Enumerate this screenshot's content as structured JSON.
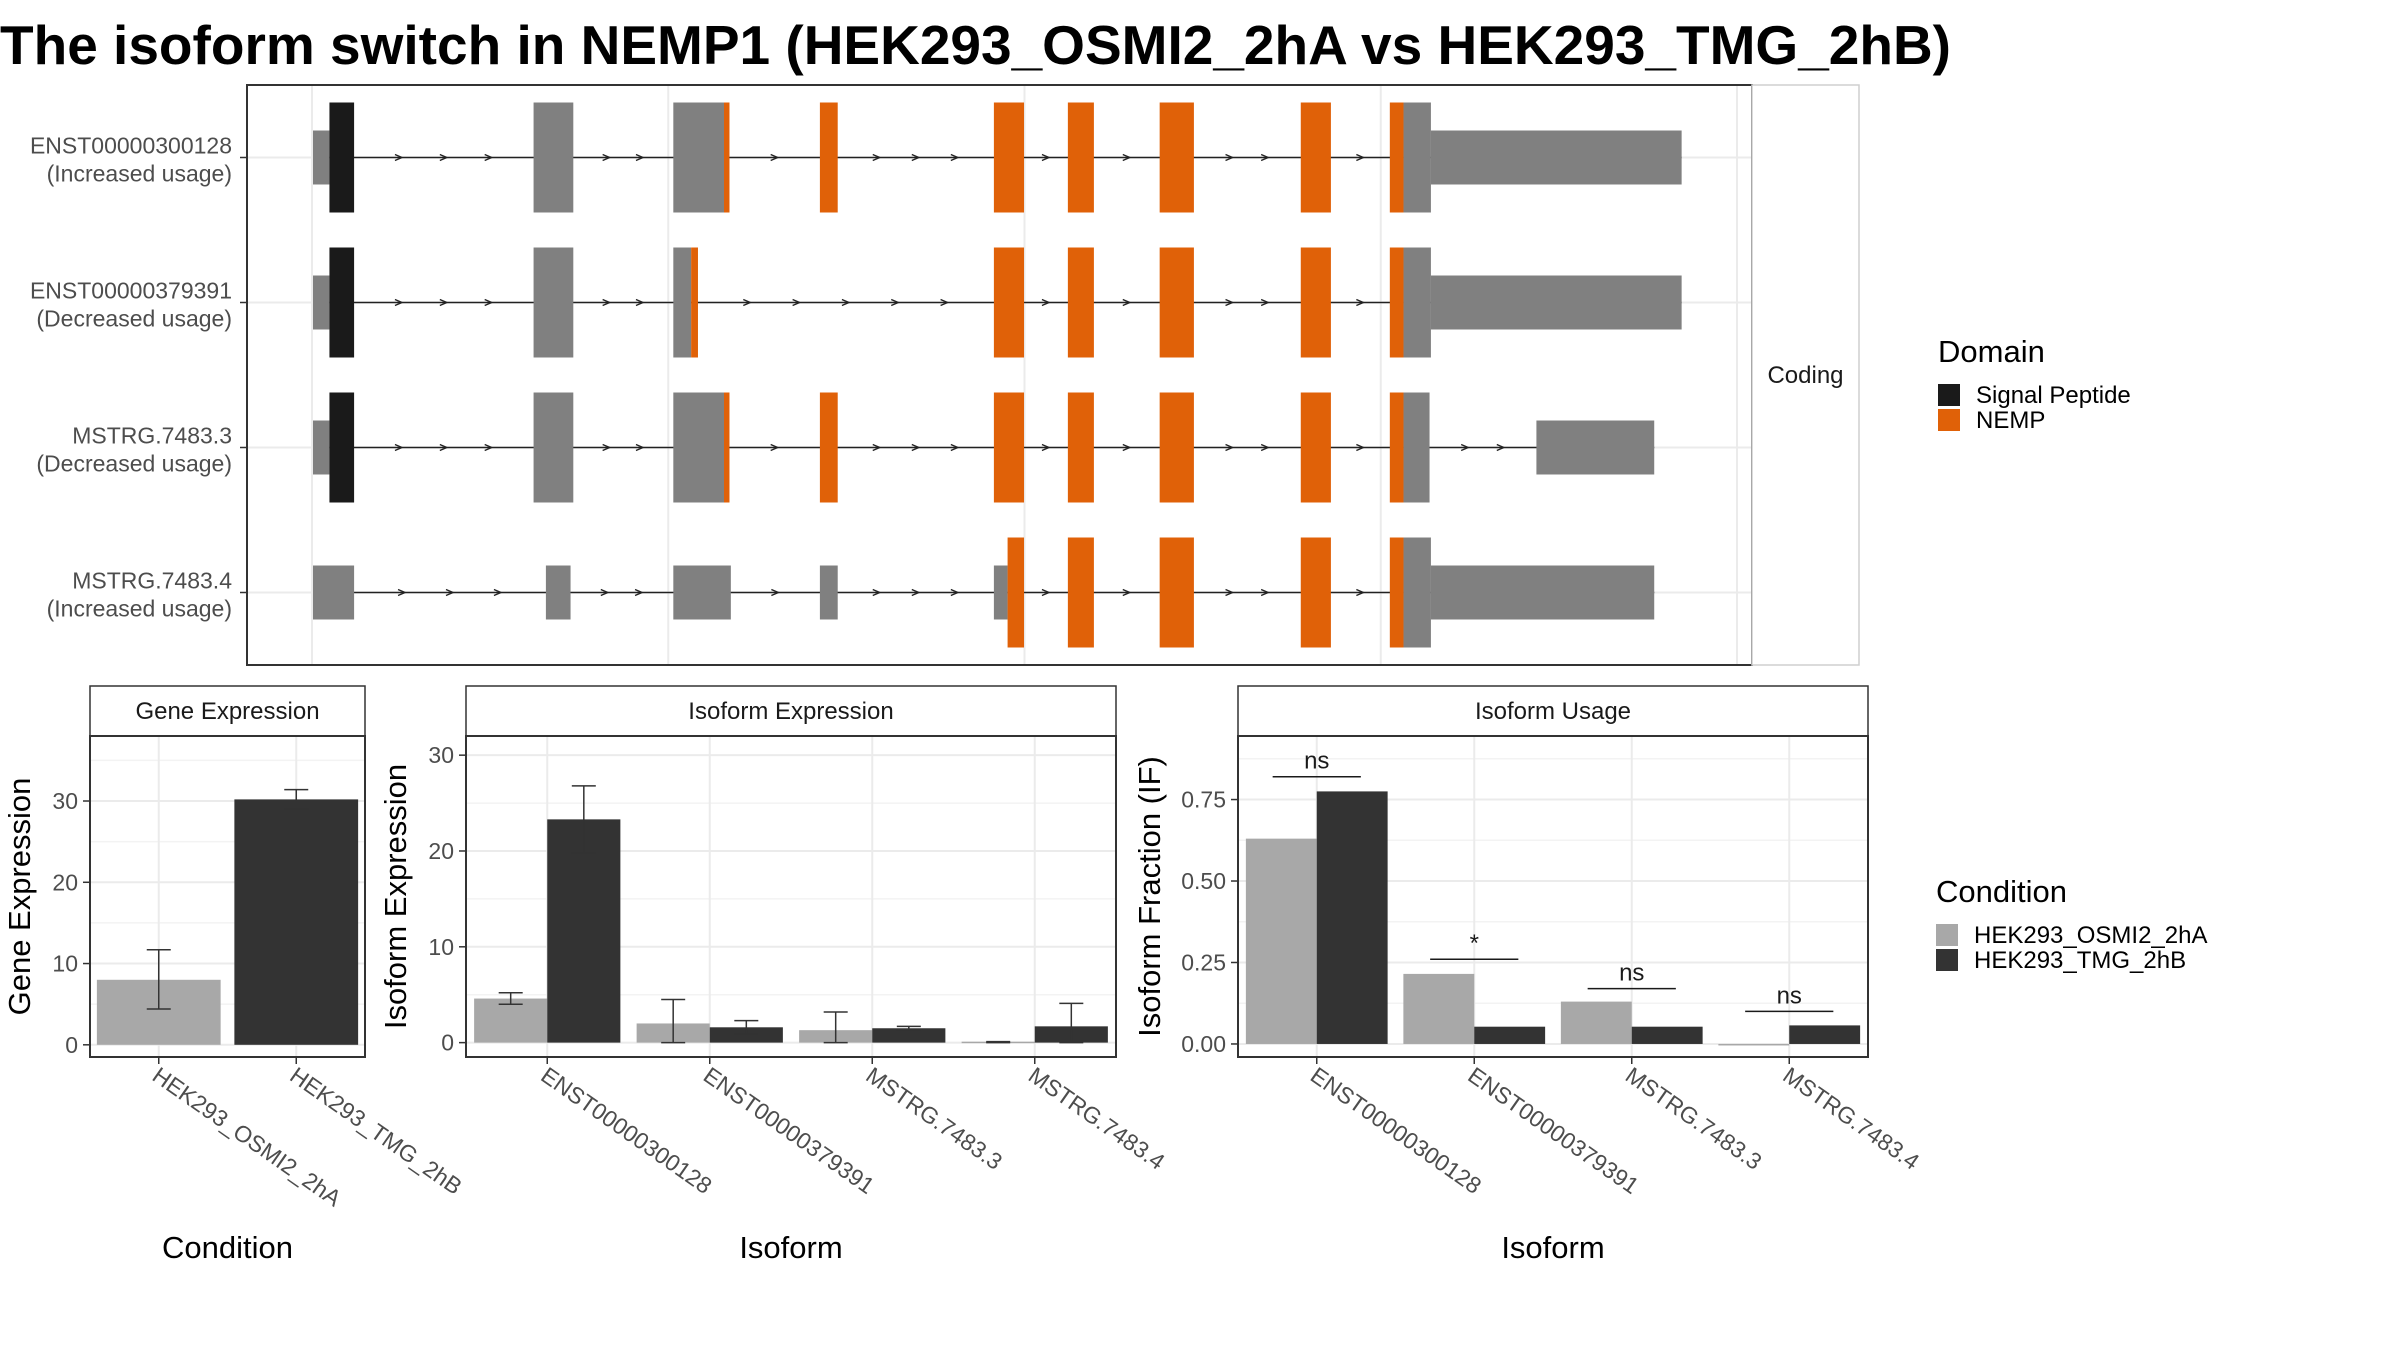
{
  "title": "The isoform switch in NEMP1 (HEK293_OSMI2_2hA vs HEK293_TMG_2hB)",
  "colors": {
    "signal_peptide": "#1a1a1a",
    "nemp": "#e06108",
    "non_domain": "#808080",
    "condition_a": "#a8a8a8",
    "condition_b": "#333333"
  },
  "chart_data": [
    {
      "type": "diagram",
      "name": "transcript-structure",
      "strip_label": "Coding",
      "x_range": [
        0,
        1000
      ],
      "transcripts": [
        {
          "id": "ENST00000300128",
          "status": "(Increased usage)",
          "segments": [
            {
              "start": 0,
              "end": 12,
              "kind": "utr"
            },
            {
              "start": 12,
              "end": 30,
              "kind": "signal_peptide"
            },
            {
              "start": 161,
              "end": 190,
              "kind": "exon"
            },
            {
              "start": 263,
              "end": 303,
              "kind": "exon"
            },
            {
              "start": 300,
              "end": 304,
              "kind": "nemp"
            },
            {
              "start": 370,
              "end": 383,
              "kind": "nemp"
            },
            {
              "start": 497,
              "end": 519,
              "kind": "nemp"
            },
            {
              "start": 551,
              "end": 570,
              "kind": "nemp"
            },
            {
              "start": 618,
              "end": 643,
              "kind": "nemp"
            },
            {
              "start": 721,
              "end": 743,
              "kind": "nemp"
            },
            {
              "start": 786,
              "end": 796,
              "kind": "nemp"
            },
            {
              "start": 796,
              "end": 816,
              "kind": "exon"
            },
            {
              "start": 816,
              "end": 999,
              "kind": "utr"
            }
          ]
        },
        {
          "id": "ENST00000379391",
          "status": "(Decreased usage)",
          "segments": [
            {
              "start": 0,
              "end": 12,
              "kind": "utr"
            },
            {
              "start": 12,
              "end": 30,
              "kind": "signal_peptide"
            },
            {
              "start": 161,
              "end": 190,
              "kind": "exon"
            },
            {
              "start": 263,
              "end": 276,
              "kind": "exon"
            },
            {
              "start": 276,
              "end": 281,
              "kind": "nemp"
            },
            {
              "start": 497,
              "end": 519,
              "kind": "nemp"
            },
            {
              "start": 551,
              "end": 570,
              "kind": "nemp"
            },
            {
              "start": 618,
              "end": 643,
              "kind": "nemp"
            },
            {
              "start": 721,
              "end": 743,
              "kind": "nemp"
            },
            {
              "start": 786,
              "end": 796,
              "kind": "nemp"
            },
            {
              "start": 796,
              "end": 816,
              "kind": "exon"
            },
            {
              "start": 816,
              "end": 999,
              "kind": "utr"
            }
          ]
        },
        {
          "id": "MSTRG.7483.3",
          "status": "(Decreased usage)",
          "segments": [
            {
              "start": 0,
              "end": 12,
              "kind": "utr"
            },
            {
              "start": 12,
              "end": 30,
              "kind": "signal_peptide"
            },
            {
              "start": 161,
              "end": 190,
              "kind": "exon"
            },
            {
              "start": 263,
              "end": 303,
              "kind": "exon"
            },
            {
              "start": 300,
              "end": 304,
              "kind": "nemp"
            },
            {
              "start": 370,
              "end": 383,
              "kind": "nemp"
            },
            {
              "start": 497,
              "end": 519,
              "kind": "nemp"
            },
            {
              "start": 551,
              "end": 570,
              "kind": "nemp"
            },
            {
              "start": 618,
              "end": 643,
              "kind": "nemp"
            },
            {
              "start": 721,
              "end": 743,
              "kind": "nemp"
            },
            {
              "start": 786,
              "end": 796,
              "kind": "nemp"
            },
            {
              "start": 796,
              "end": 815,
              "kind": "exon"
            },
            {
              "start": 893,
              "end": 979,
              "kind": "utr"
            }
          ]
        },
        {
          "id": "MSTRG.7483.4",
          "status": "(Increased usage)",
          "segments": [
            {
              "start": 0,
              "end": 30,
              "kind": "utr"
            },
            {
              "start": 170,
              "end": 188,
              "kind": "utr"
            },
            {
              "start": 263,
              "end": 305,
              "kind": "utr"
            },
            {
              "start": 370,
              "end": 383,
              "kind": "utr"
            },
            {
              "start": 497,
              "end": 507,
              "kind": "utr"
            },
            {
              "start": 507,
              "end": 519,
              "kind": "nemp"
            },
            {
              "start": 551,
              "end": 570,
              "kind": "nemp"
            },
            {
              "start": 618,
              "end": 643,
              "kind": "nemp"
            },
            {
              "start": 721,
              "end": 743,
              "kind": "nemp"
            },
            {
              "start": 786,
              "end": 796,
              "kind": "nemp"
            },
            {
              "start": 796,
              "end": 816,
              "kind": "exon"
            },
            {
              "start": 816,
              "end": 979,
              "kind": "utr"
            }
          ]
        }
      ]
    },
    {
      "type": "bar",
      "name": "gene-expression",
      "strip_title": "Gene Expression",
      "ylabel": "Gene Expression",
      "xlabel": "Condition",
      "ylim": [
        -1.5,
        38
      ],
      "yticks": [
        0,
        10,
        20,
        30
      ],
      "categories": [
        "HEK293_OSMI2_2hA",
        "HEK293_TMG_2hB"
      ],
      "series": [
        {
          "values": [
            8.0,
            30.2
          ],
          "err_low": [
            4.4,
            29.0
          ],
          "err_high": [
            11.7,
            31.4
          ]
        }
      ]
    },
    {
      "type": "bar",
      "name": "isoform-expression",
      "strip_title": "Isoform Expression",
      "ylabel": "Isoform Expression",
      "xlabel": "Isoform",
      "ylim": [
        -1.5,
        32
      ],
      "yticks": [
        0,
        10,
        20,
        30
      ],
      "categories": [
        "ENST00000300128",
        "ENST00000379391",
        "MSTRG.7483.3",
        "MSTRG.7483.4"
      ],
      "series": [
        {
          "name": "HEK293_OSMI2_2hA",
          "values": [
            4.6,
            2.0,
            1.3,
            0.1
          ],
          "err_low": [
            4.0,
            0.0,
            0.0,
            0.0
          ],
          "err_high": [
            5.2,
            4.5,
            3.2,
            0.1
          ]
        },
        {
          "name": "HEK293_TMG_2hB",
          "values": [
            23.3,
            1.6,
            1.5,
            1.7
          ],
          "err_low": [
            19.8,
            0.9,
            1.3,
            0.0
          ],
          "err_high": [
            26.8,
            2.3,
            1.7,
            4.1
          ]
        }
      ]
    },
    {
      "type": "bar",
      "name": "isoform-usage",
      "strip_title": "Isoform Usage",
      "ylabel": "Isoform Fraction (IF)",
      "xlabel": "Isoform",
      "ylim": [
        -0.04,
        0.945
      ],
      "yticks": [
        0.0,
        0.25,
        0.5,
        0.75
      ],
      "ytick_labels": [
        "0.00",
        "0.25",
        "0.50",
        "0.75"
      ],
      "categories": [
        "ENST00000300128",
        "ENST00000379391",
        "MSTRG.7483.3",
        "MSTRG.7483.4"
      ],
      "series": [
        {
          "name": "HEK293_OSMI2_2hA",
          "values": [
            0.63,
            0.215,
            0.13,
            0.0
          ]
        },
        {
          "name": "HEK293_TMG_2hB",
          "values": [
            0.775,
            0.053,
            0.053,
            0.057
          ]
        }
      ],
      "significance": [
        {
          "label": "ns",
          "y": 0.82
        },
        {
          "label": "*",
          "y": 0.26
        },
        {
          "label": "ns",
          "y": 0.17
        },
        {
          "label": "ns",
          "y": 0.1
        }
      ]
    }
  ],
  "legends": {
    "domain": {
      "title": "Domain",
      "items": [
        {
          "label": "Signal Peptide",
          "color": "#1a1a1a"
        },
        {
          "label": "NEMP",
          "color": "#e06108"
        }
      ]
    },
    "condition": {
      "title": "Condition",
      "items": [
        {
          "label": "HEK293_OSMI2_2hA",
          "color": "#a8a8a8"
        },
        {
          "label": "HEK293_TMG_2hB",
          "color": "#333333"
        }
      ]
    }
  }
}
